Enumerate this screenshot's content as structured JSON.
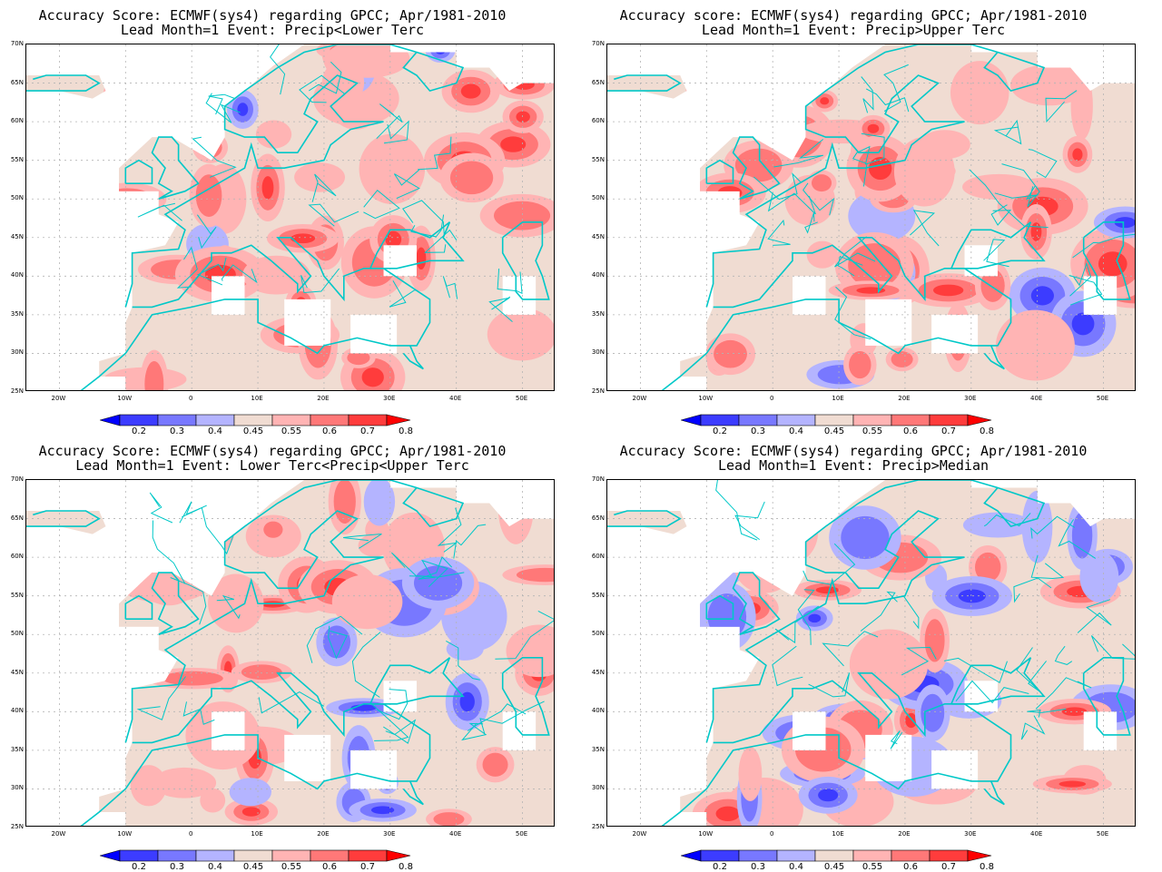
{
  "panels": [
    {
      "title1": "Accuracy Score: ECMWF(sys4) regarding GPCC; Apr/1981-2010",
      "title2": "Lead Month=1 Event: Precip<Lower Terc"
    },
    {
      "title1": "Accuracy score: ECMWF(sys4) regarding GPCC; Apr/1981-2010",
      "title2": "Lead Month=1 Event: Precip>Upper Terc"
    },
    {
      "title1": "Accuracy Score: ECMWF(sys4) regarding GPCC; Apr/1981-2010",
      "title2": "Lead Month=1 Event: Lower Terc<Precip<Upper Terc"
    },
    {
      "title1": "Accuracy Score: ECMWF(sys4) regarding GPCC; Apr/1981-2010",
      "title2": "Lead Month=1 Event: Precip>Median"
    }
  ],
  "lat_labels": [
    "70N",
    "65N",
    "60N",
    "55N",
    "50N",
    "45N",
    "40N",
    "35N",
    "30N",
    "25N"
  ],
  "lon_labels": [
    "20W",
    "10W",
    "0",
    "10E",
    "20E",
    "30E",
    "40E",
    "50E"
  ],
  "colorbar": {
    "ticks": [
      "0.2",
      "0.3",
      "0.4",
      "0.45",
      "0.55",
      "0.6",
      "0.7",
      "0.8"
    ],
    "colors": [
      "#0000ff",
      "#3c3cff",
      "#7878ff",
      "#b4b4ff",
      "#f0dcd2",
      "#ffb4b4",
      "#ff7878",
      "#ff3c3c",
      "#ff0000"
    ]
  },
  "colors": {
    "coast": "#00c8c8",
    "grid": "#b4b4b4"
  }
}
